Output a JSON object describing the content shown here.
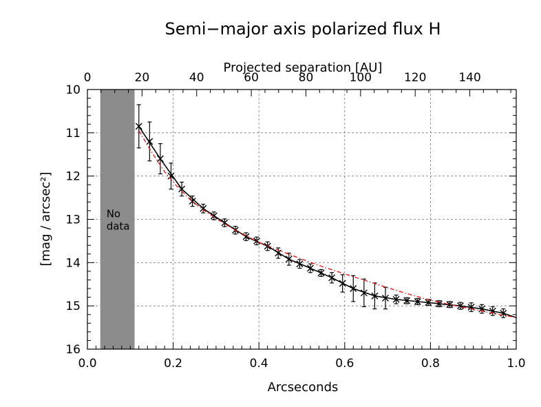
{
  "chart_data": {
    "type": "scatter",
    "title": "Semi−major axis polarized flux H",
    "xlabel": "Arcseconds",
    "ylabel": "[mag / arcsec²]",
    "x2label": "Projected separation [AU]",
    "xlim": [
      0.0,
      1.0
    ],
    "ylim": [
      16,
      10
    ],
    "x2lim": [
      0,
      157
    ],
    "xticks": [
      "0.0",
      "0.2",
      "0.4",
      "0.6",
      "0.8",
      "1.0"
    ],
    "yticks": [
      "10",
      "11",
      "12",
      "13",
      "14",
      "15",
      "16"
    ],
    "x2ticks": [
      "0",
      "20",
      "40",
      "60",
      "80",
      "100",
      "120",
      "140"
    ],
    "grid": true,
    "no_data_region": {
      "x": [
        0.03,
        0.11
      ],
      "y": [
        10,
        16
      ],
      "label": [
        "No",
        "data"
      ],
      "color": "#8c8c8c"
    },
    "series": [
      {
        "kind": "points-with-errors",
        "color": "#000000",
        "x": [
          0.12,
          0.145,
          0.17,
          0.195,
          0.22,
          0.245,
          0.27,
          0.295,
          0.32,
          0.345,
          0.37,
          0.395,
          0.42,
          0.445,
          0.47,
          0.495,
          0.52,
          0.545,
          0.57,
          0.595,
          0.62,
          0.645,
          0.67,
          0.695,
          0.72,
          0.745,
          0.77,
          0.795,
          0.82,
          0.845,
          0.87,
          0.895,
          0.92,
          0.945,
          0.97
        ],
        "y": [
          10.85,
          11.2,
          11.6,
          12.0,
          12.3,
          12.58,
          12.75,
          12.92,
          13.08,
          13.25,
          13.4,
          13.5,
          13.62,
          13.78,
          13.92,
          14.03,
          14.13,
          14.24,
          14.35,
          14.48,
          14.6,
          14.7,
          14.77,
          14.82,
          14.85,
          14.88,
          14.9,
          14.92,
          14.95,
          14.97,
          15.0,
          15.03,
          15.07,
          15.12,
          15.17
        ],
        "yerr": [
          0.5,
          0.45,
          0.35,
          0.3,
          0.16,
          0.12,
          0.1,
          0.09,
          0.09,
          0.09,
          0.09,
          0.09,
          0.1,
          0.12,
          0.14,
          0.1,
          0.1,
          0.08,
          0.12,
          0.2,
          0.3,
          0.32,
          0.3,
          0.25,
          0.1,
          0.07,
          0.07,
          0.07,
          0.07,
          0.07,
          0.08,
          0.1,
          0.1,
          0.1,
          0.1
        ]
      },
      {
        "kind": "line",
        "color": "#000000",
        "x": [
          0.12,
          0.17,
          0.22,
          0.27,
          0.32,
          0.37,
          0.42,
          0.47,
          0.52,
          0.57,
          0.62,
          0.67,
          0.72,
          0.77,
          0.82,
          0.87,
          0.92,
          0.97,
          1.0
        ],
        "y": [
          10.85,
          11.6,
          12.3,
          12.75,
          13.08,
          13.4,
          13.62,
          13.92,
          14.13,
          14.35,
          14.6,
          14.77,
          14.85,
          14.9,
          14.95,
          15.0,
          15.07,
          15.17,
          15.27
        ]
      },
      {
        "kind": "line-dashdot",
        "color": "#e02020",
        "x": [
          0.12,
          0.15,
          0.18,
          0.21,
          0.24,
          0.27,
          0.3,
          0.35,
          0.4,
          0.45,
          0.5,
          0.55,
          0.6,
          0.65,
          0.7,
          0.75,
          0.8,
          0.85,
          0.9,
          0.95,
          1.0
        ],
        "y": [
          10.95,
          11.45,
          11.9,
          12.25,
          12.55,
          12.78,
          12.98,
          13.28,
          13.53,
          13.73,
          13.92,
          14.1,
          14.26,
          14.42,
          14.58,
          14.73,
          14.87,
          14.98,
          15.08,
          15.18,
          15.27
        ]
      }
    ]
  }
}
